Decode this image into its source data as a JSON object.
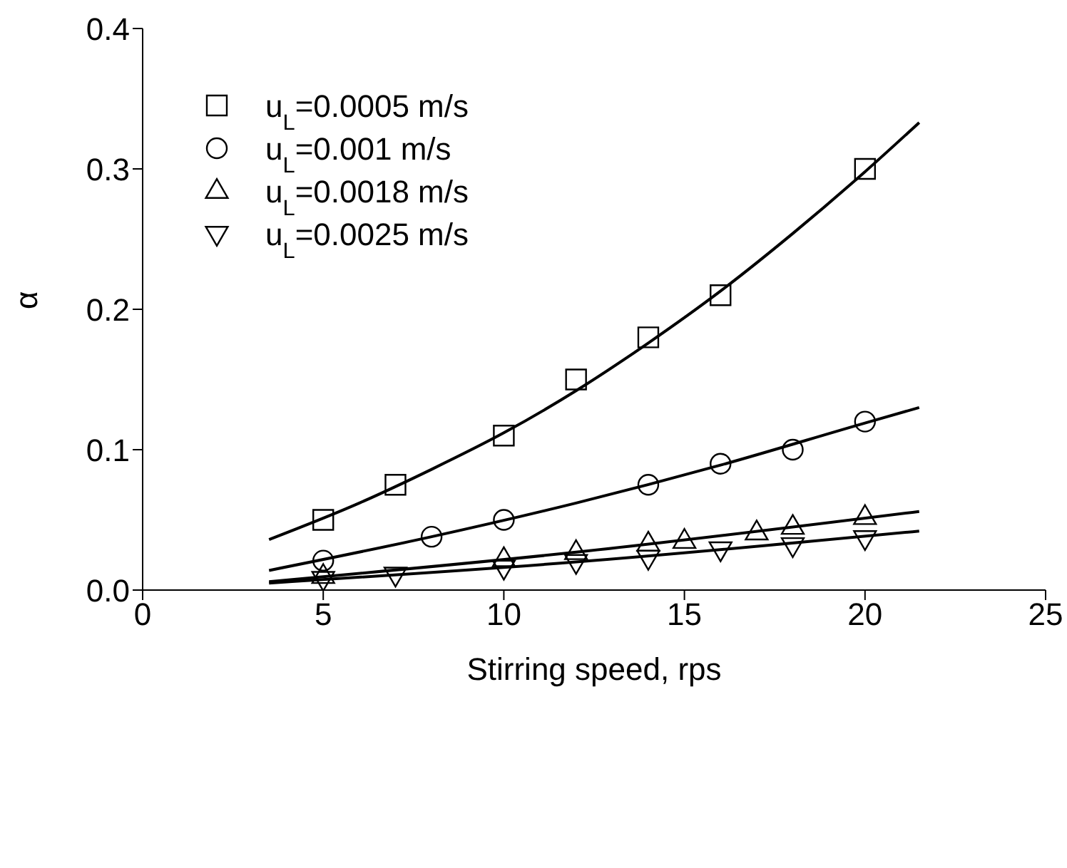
{
  "chart_data": {
    "type": "scatter",
    "xlabel": "Stirring speed, rps",
    "ylabel": "α",
    "xlim": [
      0,
      25
    ],
    "xticks": [
      0,
      5,
      10,
      15,
      20,
      25
    ],
    "ylim": [
      0,
      0.4
    ],
    "yticks": [
      {
        "value": 0,
        "label": "0.0"
      },
      0.1,
      0.2,
      0.3,
      0.4
    ],
    "grid": false,
    "legend": "top left",
    "series": [
      {
        "name": "u$_{L}$=0.0005 m/s",
        "marker": "square",
        "color": "#000000",
        "x": [
          5,
          7,
          10,
          12,
          14,
          16,
          20
        ],
        "values": [
          0.05,
          0.075,
          0.11,
          0.15,
          0.18,
          0.21,
          0.3
        ]
      },
      {
        "name": "u$_{L}$=0.001 m/s",
        "marker": "circle",
        "color": "#000000",
        "x": [
          5,
          8,
          10,
          14,
          16,
          18,
          20
        ],
        "values": [
          0.021,
          0.038,
          0.05,
          0.075,
          0.09,
          0.1,
          0.12
        ]
      },
      {
        "name": "u$_{L}$=0.0018 m/s",
        "marker": "triangle",
        "color": "#000000",
        "x": [
          5,
          10,
          12,
          14,
          15,
          17,
          18,
          20
        ],
        "values": [
          0.01,
          0.022,
          0.027,
          0.033,
          0.035,
          0.041,
          0.045,
          0.052
        ]
      },
      {
        "name": "u$_{L}$=0.0025 m/s",
        "marker": "triangle-down",
        "color": "#000000",
        "x": [
          5,
          7,
          10,
          12,
          14,
          16,
          18,
          20
        ],
        "values": [
          0.008,
          0.011,
          0.016,
          0.02,
          0.023,
          0.029,
          0.032,
          0.037
        ]
      },
      {
        "type": "line",
        "color": "#000000",
        "x": [
          3.5,
          6,
          8,
          10,
          12,
          14,
          16,
          18,
          20,
          21.5
        ],
        "values": [
          0.036,
          0.062,
          0.086,
          0.112,
          0.142,
          0.176,
          0.213,
          0.254,
          0.298,
          0.333
        ]
      },
      {
        "type": "line",
        "color": "#000000",
        "x": [
          3.5,
          8,
          12,
          16,
          20,
          21.5
        ],
        "values": [
          0.014,
          0.038,
          0.062,
          0.089,
          0.119,
          0.13
        ]
      },
      {
        "type": "line",
        "color": "#000000",
        "x": [
          3.5,
          12,
          21.5
        ],
        "values": [
          0.006,
          0.027,
          0.056
        ]
      },
      {
        "type": "line",
        "color": "#000000",
        "x": [
          3.5,
          12,
          21.5
        ],
        "values": [
          0.005,
          0.02,
          0.042
        ]
      }
    ]
  }
}
